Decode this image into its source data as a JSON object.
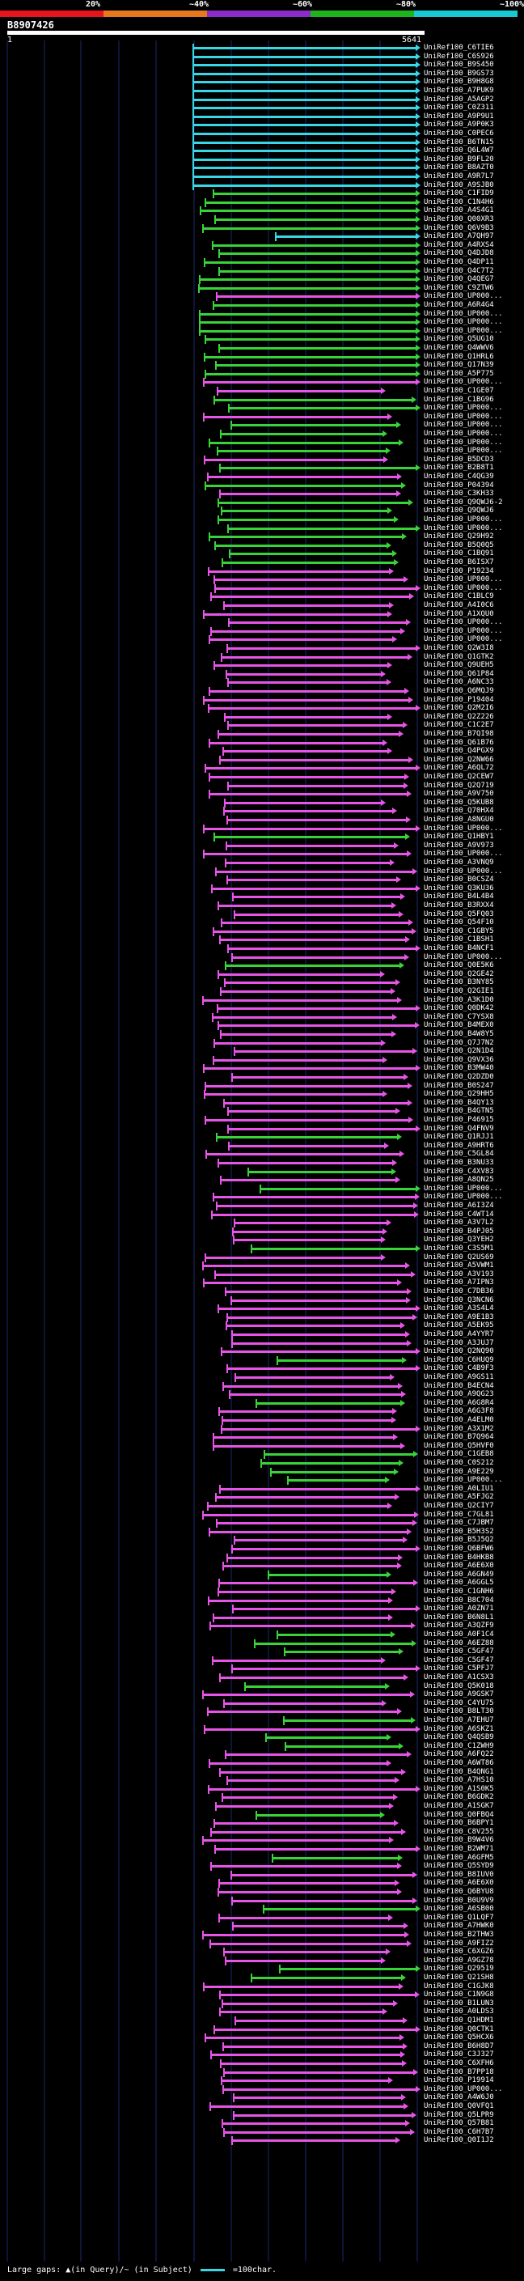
{
  "legend": {
    "segments": [
      {
        "label": "20%",
        "color": "#e6141e"
      },
      {
        "label": "~40%",
        "color": "#e6781e"
      },
      {
        "label": "~60%",
        "color": "#8c2cc8"
      },
      {
        "label": "~80%",
        "color": "#1eb41e"
      },
      {
        "label": "~100%",
        "color": "#18c8d2"
      }
    ]
  },
  "query": {
    "id": "B8907426",
    "start": "1",
    "end": "5641"
  },
  "colors": {
    "cyan": "#39d7e6",
    "green": "#39d339",
    "magenta": "#e655e6",
    "grid": "#1a2a6e",
    "dim": "#3c3c3c"
  },
  "hits": [
    {
      "label": "UniRef100_C6TIE6",
      "color": "cyan"
    },
    {
      "label": "UniRef100_C6S926",
      "color": "cyan"
    },
    {
      "label": "UniRef100_B9S450",
      "color": "cyan"
    },
    {
      "label": "UniRef100_B9GS73",
      "color": "cyan"
    },
    {
      "label": "UniRef100_B9H8G8",
      "color": "cyan"
    },
    {
      "label": "UniRef100_A7PUK9",
      "color": "cyan"
    },
    {
      "label": "UniRef100_A5AGP2",
      "color": "cyan"
    },
    {
      "label": "UniRef100_C0Z311",
      "color": "cyan"
    },
    {
      "label": "UniRef100_A9P9U1",
      "color": "cyan"
    },
    {
      "label": "UniRef100_A9P0K3",
      "color": "cyan"
    },
    {
      "label": "UniRef100_C0PEC6",
      "color": "cyan"
    },
    {
      "label": "UniRef100_B6TN15",
      "color": "cyan"
    },
    {
      "label": "UniRef100_Q6L4W7",
      "color": "cyan"
    },
    {
      "label": "UniRef100_B9FL20",
      "color": "cyan"
    },
    {
      "label": "UniRef100_B8AZT0",
      "color": "cyan"
    },
    {
      "label": "UniRef100_A9R7L7",
      "color": "cyan"
    },
    {
      "label": "UniRef100_A9SJB0",
      "color": "cyan"
    },
    {
      "label": "UniRef100_C1FID9",
      "color": "green"
    },
    {
      "label": "UniRef100_C1N4H6",
      "color": "green"
    },
    {
      "label": "UniRef100_A4S4G1",
      "color": "green"
    },
    {
      "label": "UniRef100_Q00XR3",
      "color": "green"
    },
    {
      "label": "UniRef100_Q6V9B3",
      "color": "green"
    },
    {
      "label": "UniRef100_A7QH97",
      "color": "cyan"
    },
    {
      "label": "UniRef100_A4RXS4",
      "color": "green"
    },
    {
      "label": "UniRef100_Q4DJD8",
      "color": "green"
    },
    {
      "label": "UniRef100_Q4DP11",
      "color": "green"
    },
    {
      "label": "UniRef100_Q4C7T2",
      "color": "green"
    },
    {
      "label": "UniRef100_Q4QEG7",
      "color": "green"
    },
    {
      "label": "UniRef100_C9ZTW6",
      "color": "green"
    },
    {
      "label": "UniRef100_UP000...",
      "color": "magenta"
    },
    {
      "label": "UniRef100_A6R4G4",
      "color": "green"
    },
    {
      "label": "UniRef100_UP000...",
      "color": "green"
    },
    {
      "label": "UniRef100_UP000...",
      "color": "green"
    },
    {
      "label": "UniRef100_UP000...",
      "color": "green"
    },
    {
      "label": "UniRef100_Q5UG10",
      "color": "green"
    },
    {
      "label": "UniRef100_Q4WWV6",
      "color": "green"
    },
    {
      "label": "UniRef100_Q1HRL6",
      "color": "green"
    },
    {
      "label": "UniRef100_Q17N39",
      "color": "green"
    },
    {
      "label": "UniRef100_A5P775",
      "color": "green"
    },
    {
      "label": "UniRef100_UP000...",
      "color": "magenta"
    },
    {
      "label": "UniRef100_C1GE07",
      "color": "magenta"
    },
    {
      "label": "UniRef100_C1BG96",
      "color": "green"
    },
    {
      "label": "UniRef100_UP000...",
      "color": "green"
    },
    {
      "label": "UniRef100_UP000...",
      "color": "magenta"
    },
    {
      "label": "UniRef100_UP000...",
      "color": "green"
    },
    {
      "label": "UniRef100_UP000...",
      "color": "green"
    },
    {
      "label": "UniRef100_UP000...",
      "color": "green"
    },
    {
      "label": "UniRef100_UP000...",
      "color": "green"
    },
    {
      "label": "UniRef100_B5DCD3",
      "color": "magenta"
    },
    {
      "label": "UniRef100_B2B8T1",
      "color": "green"
    },
    {
      "label": "UniRef100_C4QG39",
      "color": "magenta"
    },
    {
      "label": "UniRef100_P04394",
      "color": "green"
    },
    {
      "label": "UniRef100_C3KH33",
      "color": "magenta"
    },
    {
      "label": "UniRef100_Q9QWJ6-2",
      "color": "green"
    },
    {
      "label": "UniRef100_Q9QWJ6",
      "color": "green"
    },
    {
      "label": "UniRef100_UP000...",
      "color": "green"
    },
    {
      "label": "UniRef100_UP000...",
      "color": "green"
    },
    {
      "label": "UniRef100_Q29H92",
      "color": "green"
    },
    {
      "label": "UniRef100_B5Q0Q5",
      "color": "green"
    },
    {
      "label": "UniRef100_C1BQ91",
      "color": "green"
    },
    {
      "label": "UniRef100_B6ISX7",
      "color": "green"
    },
    {
      "label": "UniRef100_P19234",
      "color": "magenta"
    },
    {
      "label": "UniRef100_UP000...",
      "color": "magenta"
    },
    {
      "label": "UniRef100_UP000...",
      "color": "magenta"
    },
    {
      "label": "UniRef100_C1BLC9",
      "color": "magenta"
    },
    {
      "label": "UniRef100_A4I0C6",
      "color": "magenta"
    },
    {
      "label": "UniRef100_A1XQU0",
      "color": "magenta"
    },
    {
      "label": "UniRef100_UP000...",
      "color": "magenta"
    },
    {
      "label": "UniRef100_UP000...",
      "color": "magenta"
    },
    {
      "label": "UniRef100_UP000...",
      "color": "magenta"
    },
    {
      "label": "UniRef100_Q2W3I8",
      "color": "magenta"
    },
    {
      "label": "UniRef100_Q1GTK2",
      "color": "magenta"
    },
    {
      "label": "UniRef100_Q9UEH5",
      "color": "magenta"
    },
    {
      "label": "UniRef100_Q61P84",
      "color": "magenta"
    },
    {
      "label": "UniRef100_A6NC33",
      "color": "magenta"
    },
    {
      "label": "UniRef100_Q6MQJ9",
      "color": "magenta"
    },
    {
      "label": "UniRef100_P19404",
      "color": "magenta"
    },
    {
      "label": "UniRef100_Q2M2I6",
      "color": "magenta"
    },
    {
      "label": "UniRef100_Q2Z226",
      "color": "magenta"
    },
    {
      "label": "UniRef100_C1C2E7",
      "color": "magenta"
    },
    {
      "label": "UniRef100_B7QI98",
      "color": "magenta"
    },
    {
      "label": "UniRef100_Q61B76",
      "color": "magenta"
    },
    {
      "label": "UniRef100_Q4PGX9",
      "color": "magenta"
    },
    {
      "label": "UniRef100_Q2NW66",
      "color": "magenta"
    },
    {
      "label": "UniRef100_A6QL72",
      "color": "magenta"
    },
    {
      "label": "UniRef100_Q2CEW7",
      "color": "magenta"
    },
    {
      "label": "UniRef100_Q2Q719",
      "color": "magenta"
    },
    {
      "label": "UniRef100_A9V750",
      "color": "magenta"
    },
    {
      "label": "UniRef100_Q5KUB8",
      "color": "magenta"
    },
    {
      "label": "UniRef100_Q70HX4",
      "color": "magenta"
    },
    {
      "label": "UniRef100_A8NGU0",
      "color": "magenta"
    },
    {
      "label": "UniRef100_UP000...",
      "color": "magenta"
    },
    {
      "label": "UniRef100_Q1HBY1",
      "color": "green"
    },
    {
      "label": "UniRef100_A9V973",
      "color": "magenta"
    },
    {
      "label": "UniRef100_UP000...",
      "color": "magenta"
    },
    {
      "label": "UniRef100_A3VNQ9",
      "color": "magenta"
    },
    {
      "label": "UniRef100_UP000...",
      "color": "magenta"
    },
    {
      "label": "UniRef100_B0CSZ4",
      "color": "magenta"
    },
    {
      "label": "UniRef100_Q3KU36",
      "color": "magenta"
    },
    {
      "label": "UniRef100_B4L4B4",
      "color": "magenta"
    },
    {
      "label": "UniRef100_B3RXX4",
      "color": "magenta"
    },
    {
      "label": "UniRef100_Q5FQ03",
      "color": "magenta"
    },
    {
      "label": "UniRef100_Q54F10",
      "color": "magenta"
    },
    {
      "label": "UniRef100_C1GBY5",
      "color": "magenta"
    },
    {
      "label": "UniRef100_C1BSH1",
      "color": "magenta"
    },
    {
      "label": "UniRef100_B4NCF1",
      "color": "magenta"
    },
    {
      "label": "UniRef100_UP000...",
      "color": "magenta"
    },
    {
      "label": "UniRef100_Q0E5K6",
      "color": "green"
    },
    {
      "label": "UniRef100_Q2GE42",
      "color": "magenta"
    },
    {
      "label": "UniRef100_B3NY85",
      "color": "magenta"
    },
    {
      "label": "UniRef100_Q2GIE1",
      "color": "magenta"
    },
    {
      "label": "UniRef100_A3K1D0",
      "color": "magenta"
    },
    {
      "label": "UniRef100_Q0DK42",
      "color": "magenta"
    },
    {
      "label": "UniRef100_C7YSX8",
      "color": "magenta"
    },
    {
      "label": "UniRef100_B4MEX0",
      "color": "magenta"
    },
    {
      "label": "UniRef100_B4W8Y5",
      "color": "magenta"
    },
    {
      "label": "UniRef100_Q7J7N2",
      "color": "magenta"
    },
    {
      "label": "UniRef100_Q2N1D4",
      "color": "magenta"
    },
    {
      "label": "UniRef100_Q9VX36",
      "color": "magenta"
    },
    {
      "label": "UniRef100_B3MW40",
      "color": "magenta"
    },
    {
      "label": "UniRef100_Q2DZD0",
      "color": "magenta"
    },
    {
      "label": "UniRef100_B0S247",
      "color": "magenta"
    },
    {
      "label": "UniRef100_Q29HH5",
      "color": "magenta"
    },
    {
      "label": "UniRef100_B4QY13",
      "color": "magenta"
    },
    {
      "label": "UniRef100_B4GTN5",
      "color": "magenta"
    },
    {
      "label": "UniRef100_P46915",
      "color": "magenta"
    },
    {
      "label": "UniRef100_Q4FNV9",
      "color": "magenta"
    },
    {
      "label": "UniRef100_Q1RJJ1",
      "color": "green"
    },
    {
      "label": "UniRef100_A9HRT6",
      "color": "magenta"
    },
    {
      "label": "UniRef100_C5GL84",
      "color": "magenta"
    },
    {
      "label": "UniRef100_B3NU33",
      "color": "magenta"
    },
    {
      "label": "UniRef100_C4XV83",
      "color": "green"
    },
    {
      "label": "UniRef100_A8QN25",
      "color": "magenta"
    },
    {
      "label": "UniRef100_UP000...",
      "color": "green"
    },
    {
      "label": "UniRef100_UP000...",
      "color": "magenta"
    },
    {
      "label": "UniRef100_A6I3Z4",
      "color": "magenta"
    },
    {
      "label": "UniRef100_C4WT14",
      "color": "magenta"
    },
    {
      "label": "UniRef100_A3V7L2",
      "color": "magenta"
    },
    {
      "label": "UniRef100_B4PJ05",
      "color": "magenta"
    },
    {
      "label": "UniRef100_Q3YEH2",
      "color": "magenta"
    },
    {
      "label": "UniRef100_C3S5M1",
      "color": "green"
    },
    {
      "label": "UniRef100_Q2US69",
      "color": "magenta"
    },
    {
      "label": "UniRef100_A5VWM1",
      "color": "magenta"
    },
    {
      "label": "UniRef100_A3V193",
      "color": "magenta"
    },
    {
      "label": "UniRef100_A7IPN3",
      "color": "magenta"
    },
    {
      "label": "UniRef100_C7DB36",
      "color": "magenta"
    },
    {
      "label": "UniRef100_Q3NCN6",
      "color": "magenta"
    },
    {
      "label": "UniRef100_A3S4L4",
      "color": "magenta"
    },
    {
      "label": "UniRef100_A9E1B3",
      "color": "magenta"
    },
    {
      "label": "UniRef100_A5EK95",
      "color": "magenta"
    },
    {
      "label": "UniRef100_A4YYR7",
      "color": "magenta"
    },
    {
      "label": "UniRef100_A3JUJ7",
      "color": "magenta"
    },
    {
      "label": "UniRef100_Q2NQ90",
      "color": "magenta"
    },
    {
      "label": "UniRef100_C6HUQ9",
      "color": "green"
    },
    {
      "label": "UniRef100_C4B9F3",
      "color": "magenta"
    },
    {
      "label": "UniRef100_A9GS11",
      "color": "magenta"
    },
    {
      "label": "UniRef100_B4ECN4",
      "color": "magenta"
    },
    {
      "label": "UniRef100_A9QG23",
      "color": "magenta"
    },
    {
      "label": "UniRef100_A6G8R4",
      "color": "green"
    },
    {
      "label": "UniRef100_A6G3F8",
      "color": "magenta"
    },
    {
      "label": "UniRef100_A4ELM0",
      "color": "magenta"
    },
    {
      "label": "UniRef100_A3X1M2",
      "color": "magenta"
    },
    {
      "label": "UniRef100_B7Q964",
      "color": "magenta"
    },
    {
      "label": "UniRef100_Q5HVF0",
      "color": "magenta"
    },
    {
      "label": "UniRef100_C1GEB8",
      "color": "green"
    },
    {
      "label": "UniRef100_C0S212",
      "color": "green"
    },
    {
      "label": "UniRef100_A9E229",
      "color": "green"
    },
    {
      "label": "UniRef100_UP000...",
      "color": "green"
    },
    {
      "label": "UniRef100_A0LIU1",
      "color": "magenta"
    },
    {
      "label": "UniRef100_A5FJG2",
      "color": "magenta"
    },
    {
      "label": "UniRef100_Q2CIY7",
      "color": "magenta"
    },
    {
      "label": "UniRef100_C7GL81",
      "color": "magenta"
    },
    {
      "label": "UniRef100_C7JBM7",
      "color": "magenta"
    },
    {
      "label": "UniRef100_B5H3S2",
      "color": "magenta"
    },
    {
      "label": "UniRef100_B5J5Q2",
      "color": "magenta"
    },
    {
      "label": "UniRef100_Q6BFW6",
      "color": "magenta"
    },
    {
      "label": "UniRef100_B4HKB8",
      "color": "magenta"
    },
    {
      "label": "UniRef100_A6E6X0",
      "color": "magenta"
    },
    {
      "label": "UniRef100_A6GN49",
      "color": "green"
    },
    {
      "label": "UniRef100_A6GGL5",
      "color": "magenta"
    },
    {
      "label": "UniRef100_C1GNH6",
      "color": "magenta"
    },
    {
      "label": "UniRef100_B8C704",
      "color": "magenta"
    },
    {
      "label": "UniRef100_A0ZN71",
      "color": "magenta"
    },
    {
      "label": "UniRef100_B6N8L1",
      "color": "magenta"
    },
    {
      "label": "UniRef100_A3QZF9",
      "color": "magenta"
    },
    {
      "label": "UniRef100_A0F1C4",
      "color": "green"
    },
    {
      "label": "UniRef100_A6EZ88",
      "color": "green"
    },
    {
      "label": "UniRef100_C5GF47",
      "color": "green"
    },
    {
      "label": "UniRef100_C5GF47",
      "color": "magenta"
    },
    {
      "label": "UniRef100_C5PFJ7",
      "color": "magenta"
    },
    {
      "label": "UniRef100_A1CSX3",
      "color": "magenta"
    },
    {
      "label": "UniRef100_Q5K018",
      "color": "green"
    },
    {
      "label": "UniRef100_A9GSK7",
      "color": "magenta"
    },
    {
      "label": "UniRef100_C4YU75",
      "color": "magenta"
    },
    {
      "label": "UniRef100_B8LT30",
      "color": "magenta"
    },
    {
      "label": "UniRef100_A7EHU7",
      "color": "green"
    },
    {
      "label": "UniRef100_A6SKZ1",
      "color": "magenta"
    },
    {
      "label": "UniRef100_Q4QSB9",
      "color": "green"
    },
    {
      "label": "UniRef100_C1ZWH9",
      "color": "green"
    },
    {
      "label": "UniRef100_A6FQ22",
      "color": "magenta"
    },
    {
      "label": "UniRef100_A6WT86",
      "color": "magenta"
    },
    {
      "label": "UniRef100_B4QNG1",
      "color": "magenta"
    },
    {
      "label": "UniRef100_A7HS10",
      "color": "magenta"
    },
    {
      "label": "UniRef100_A1S0K5",
      "color": "magenta"
    },
    {
      "label": "UniRef100_B6GDK2",
      "color": "magenta"
    },
    {
      "label": "UniRef100_A1SGK7",
      "color": "magenta"
    },
    {
      "label": "UniRef100_Q0FBQ4",
      "color": "green"
    },
    {
      "label": "UniRef100_B6BPY1",
      "color": "magenta"
    },
    {
      "label": "UniRef100_C8V255",
      "color": "magenta"
    },
    {
      "label": "UniRef100_B9W4V6",
      "color": "magenta"
    },
    {
      "label": "UniRef100_B2WM71",
      "color": "magenta"
    },
    {
      "label": "UniRef100_A6GFM5",
      "color": "green"
    },
    {
      "label": "UniRef100_Q5SYD9",
      "color": "magenta"
    },
    {
      "label": "UniRef100_B8IUV0",
      "color": "magenta"
    },
    {
      "label": "UniRef100_A6E6X0",
      "color": "magenta"
    },
    {
      "label": "UniRef100_Q6BYU8",
      "color": "magenta"
    },
    {
      "label": "UniRef100_B0U9V9",
      "color": "magenta"
    },
    {
      "label": "UniRef100_A6SB00",
      "color": "green"
    },
    {
      "label": "UniRef100_Q1LQF7",
      "color": "magenta"
    },
    {
      "label": "UniRef100_A7HWK0",
      "color": "magenta"
    },
    {
      "label": "UniRef100_B2THW3",
      "color": "magenta"
    },
    {
      "label": "UniRef100_A9FIZ2",
      "color": "magenta"
    },
    {
      "label": "UniRef100_C6XGZ6",
      "color": "magenta"
    },
    {
      "label": "UniRef100_A9GZ78",
      "color": "magenta"
    },
    {
      "label": "UniRef100_Q29519",
      "color": "green"
    },
    {
      "label": "UniRef100_Q21SH8",
      "color": "green"
    },
    {
      "label": "UniRef100_C1GJK8",
      "color": "magenta"
    },
    {
      "label": "UniRef100_C1N9G8",
      "color": "magenta"
    },
    {
      "label": "UniRef100_B1LUN3",
      "color": "magenta"
    },
    {
      "label": "UniRef100_A0LDS3",
      "color": "magenta"
    },
    {
      "label": "UniRef100_Q1HDM1",
      "color": "magenta"
    },
    {
      "label": "UniRef100_Q0CTK1",
      "color": "magenta"
    },
    {
      "label": "UniRef100_Q5HCX6",
      "color": "magenta"
    },
    {
      "label": "UniRef100_B6H8D7",
      "color": "magenta"
    },
    {
      "label": "UniRef100_C3J327",
      "color": "magenta"
    },
    {
      "label": "UniRef100_C6XFH6",
      "color": "magenta"
    },
    {
      "label": "UniRef100_B7PP18",
      "color": "magenta"
    },
    {
      "label": "UniRef100_P19914",
      "color": "magenta"
    },
    {
      "label": "UniRef100_UP000...",
      "color": "magenta"
    },
    {
      "label": "UniRef100_A4W6J0",
      "color": "magenta"
    },
    {
      "label": "UniRef100_Q0VFQ1",
      "color": "magenta"
    },
    {
      "label": "UniRef100_Q5LPR9",
      "color": "magenta"
    },
    {
      "label": "UniRef100_Q57B81",
      "color": "magenta"
    },
    {
      "label": "UniRef100_C6H7B7",
      "color": "magenta"
    },
    {
      "label": "UniRef100_Q0I1J2",
      "color": "magenta"
    }
  ],
  "footer": {
    "text": "Large gaps: ▲(in Query)/~ (in Subject)",
    "scale": "=100char."
  }
}
